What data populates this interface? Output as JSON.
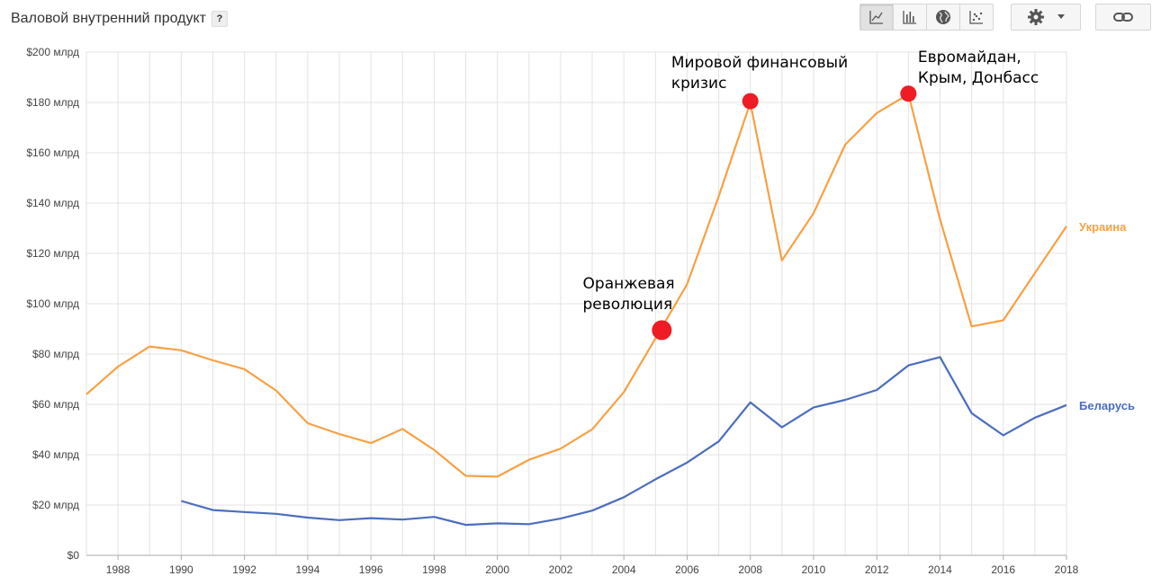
{
  "header": {
    "title": "Валовой внутренний продукт",
    "help_label": "?",
    "chart_type_buttons": [
      {
        "icon": "line-chart-icon",
        "active": true
      },
      {
        "icon": "bar-chart-icon",
        "active": false
      },
      {
        "icon": "globe-icon",
        "active": false
      },
      {
        "icon": "scatter-icon",
        "active": false
      }
    ],
    "settings_icon": "gear-icon",
    "link_icon": "link-icon"
  },
  "chart_data": {
    "type": "line",
    "title": "Валовой внутренний продукт",
    "xlim": [
      1987,
      2018
    ],
    "ylim": [
      0,
      200
    ],
    "grid": true,
    "legend": "right, at line ends",
    "x_ticks": [
      1988,
      1990,
      1992,
      1994,
      1996,
      1998,
      2000,
      2002,
      2004,
      2006,
      2008,
      2010,
      2012,
      2014,
      2016,
      2018
    ],
    "y_ticks": [
      {
        "value": 0,
        "label": "$0"
      },
      {
        "value": 20,
        "label": "$20 млрд"
      },
      {
        "value": 40,
        "label": "$40 млрд"
      },
      {
        "value": 60,
        "label": "$60 млрд"
      },
      {
        "value": 80,
        "label": "$80 млрд"
      },
      {
        "value": 100,
        "label": "$100 млрд"
      },
      {
        "value": 120,
        "label": "$120 млрд"
      },
      {
        "value": 140,
        "label": "$140 млрд"
      },
      {
        "value": 160,
        "label": "$160 млрд"
      },
      {
        "value": 180,
        "label": "$180 млрд"
      },
      {
        "value": 200,
        "label": "$200 млрд"
      }
    ],
    "series": [
      {
        "name": "Украина",
        "color": "#f7a143",
        "x": [
          1987,
          1988,
          1989,
          1990,
          1991,
          1992,
          1993,
          1994,
          1995,
          1996,
          1997,
          1998,
          1999,
          2000,
          2001,
          2002,
          2003,
          2004,
          2005,
          2006,
          2007,
          2008,
          2009,
          2010,
          2011,
          2012,
          2013,
          2014,
          2015,
          2016,
          2017,
          2018
        ],
        "values": [
          64,
          75,
          83,
          81.5,
          77.5,
          74,
          65.5,
          52.5,
          48.2,
          44.6,
          50.2,
          41.9,
          31.6,
          31.3,
          38,
          42.4,
          50.1,
          64.9,
          86.2,
          107.8,
          142.7,
          179.9,
          117.2,
          136,
          163.2,
          175.8,
          183.3,
          133.5,
          91,
          93.4,
          112.2,
          130.8
        ]
      },
      {
        "name": "Беларусь",
        "color": "#4b6ebf",
        "x": [
          1990,
          1991,
          1992,
          1993,
          1994,
          1995,
          1996,
          1997,
          1998,
          1999,
          2000,
          2001,
          2002,
          2003,
          2004,
          2005,
          2006,
          2007,
          2008,
          2009,
          2010,
          2011,
          2012,
          2013,
          2014,
          2015,
          2016,
          2017,
          2018
        ],
        "values": [
          21.6,
          18,
          17.2,
          16.5,
          15,
          14,
          14.8,
          14.2,
          15.3,
          12.1,
          12.7,
          12.4,
          14.6,
          17.8,
          23.1,
          30.2,
          36.9,
          45.3,
          60.8,
          50.9,
          58.8,
          61.8,
          65.7,
          75.5,
          78.8,
          56.5,
          47.7,
          54.7,
          59.7
        ]
      }
    ],
    "annotations": [
      {
        "lines": [
          "Оранжевая",
          "революция"
        ],
        "x": 2005.2,
        "y": 89.5,
        "dot_r": 11,
        "text_anchor_year": 2002.7,
        "text_top_value": 106
      },
      {
        "lines": [
          "Мировой финансовый",
          "кризис"
        ],
        "x": 2008,
        "y": 180.5,
        "dot_r": 9,
        "text_anchor_year": 2005.5,
        "text_top_value": 194
      },
      {
        "lines": [
          "Евромайдан,",
          "Крым, Донбасс"
        ],
        "x": 2013,
        "y": 183.5,
        "dot_r": 9,
        "text_anchor_year": 2013.3,
        "text_top_value": 196
      },
      {
        "dot_color": "#ee1c24"
      }
    ]
  }
}
